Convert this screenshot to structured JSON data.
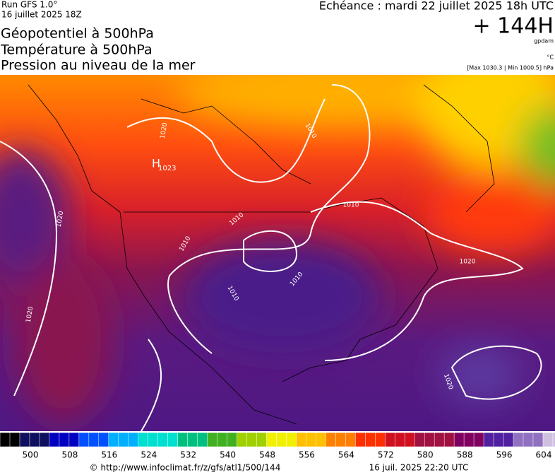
{
  "header": {
    "run": "Run GFS 1.0°",
    "date": "16 juillet 2025 18Z",
    "titles": [
      "Géopotentiel à 500hPa",
      "Température à 500hPa",
      "Pression au niveau de la mer"
    ],
    "echeance": "Echéance : mardi 22 juillet 2025 18h UTC",
    "hour": "+ 144H",
    "unit_geo": "gpdam",
    "unit_temp": "°C",
    "pressure_range": "[Max 1030.3 | Min 1000.5] hPa"
  },
  "map": {
    "high": {
      "letter": "H",
      "value": "1023"
    },
    "contour_labels": [
      "1020",
      "1020",
      "1020",
      "1010",
      "1010",
      "1010",
      "1010",
      "1010",
      "1010",
      "1020",
      "1020"
    ]
  },
  "colorbar": {
    "labels": [
      500,
      508,
      516,
      524,
      532,
      540,
      548,
      556,
      564,
      572,
      580,
      588,
      596,
      604
    ]
  },
  "footer": {
    "url": "© http://www.infoclimat.fr/z/gfs/atl1/500/144",
    "timestamp": "16 juil. 2025 22:20 UTC"
  }
}
